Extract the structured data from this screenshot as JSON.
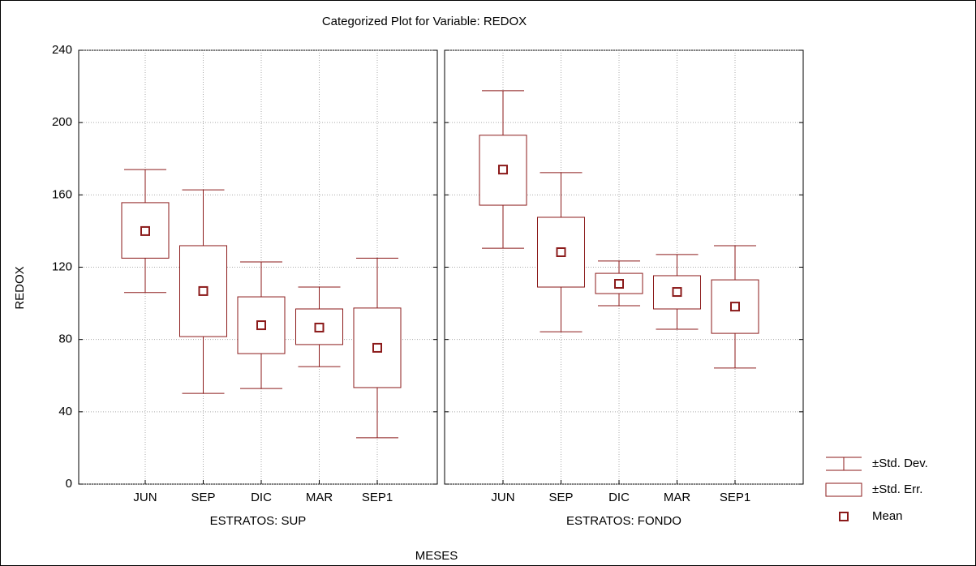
{
  "chart_data": {
    "type": "box",
    "title": "Categorized Plot for Variable: REDOX",
    "y_label": "REDOX",
    "x_label": "MESES",
    "color": "#8b1a1a",
    "grid": true,
    "ylim": [
      0,
      240
    ],
    "yticks": [
      0,
      40,
      80,
      120,
      160,
      200,
      240
    ],
    "categories": [
      "JUN",
      "SEP",
      "DIC",
      "MAR",
      "SEP1"
    ],
    "legend": [
      "±Std. Dev.",
      "±Std. Err.",
      "Mean"
    ],
    "panels": [
      {
        "label": "ESTRATOS: SUP",
        "mean": [
          140,
          106.8,
          87.9,
          86.6,
          75.4
        ],
        "se_high": [
          155.7,
          131.9,
          103.6,
          96.9,
          97.4
        ],
        "se_low": [
          125,
          81.6,
          72.2,
          77.2,
          53.4
        ],
        "sd_high": [
          174,
          162.8,
          122.9,
          109,
          125
        ],
        "sd_low": [
          106,
          50.2,
          52.9,
          65,
          25.6
        ]
      },
      {
        "label": "ESTRATOS: FONDO",
        "mean": [
          174,
          128.3,
          110.8,
          106.3,
          98.2
        ],
        "se_high": [
          193,
          147.6,
          116.6,
          115.3,
          113
        ],
        "se_low": [
          154.3,
          109,
          105.4,
          96.9,
          83.4
        ],
        "sd_high": [
          217.6,
          172.3,
          123.4,
          127,
          131.9
        ],
        "sd_low": [
          130.5,
          84.3,
          98.7,
          85.7,
          64.2
        ]
      }
    ]
  }
}
